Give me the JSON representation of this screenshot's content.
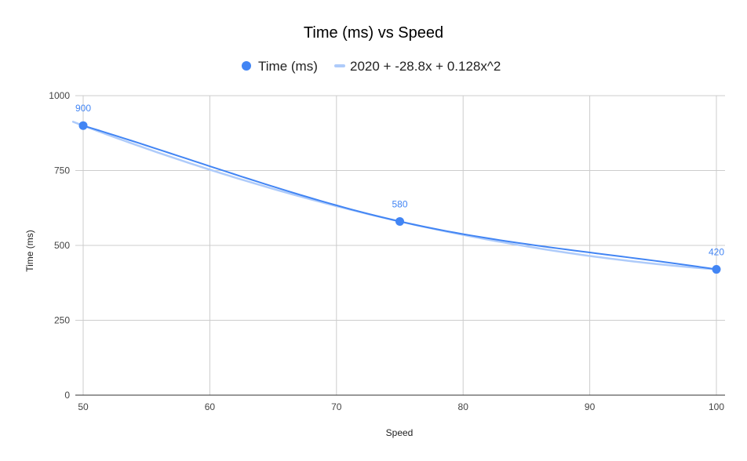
{
  "chart_data": {
    "type": "line",
    "title": "Time (ms) vs Speed",
    "xlabel": "Speed",
    "ylabel": "Time (ms)",
    "xlim": [
      50,
      100
    ],
    "ylim": [
      0,
      1000
    ],
    "x_ticks": [
      50,
      60,
      70,
      80,
      90,
      100
    ],
    "y_ticks": [
      0,
      250,
      500,
      750,
      1000
    ],
    "grid": true,
    "legend_position": "top",
    "series": [
      {
        "name": "Time (ms)",
        "x": [
          50,
          75,
          100
        ],
        "values": [
          900,
          580,
          420
        ],
        "data_labels": [
          "900",
          "580",
          "420"
        ],
        "color": "#4285f4",
        "markers": true
      }
    ],
    "trendline": {
      "name": "2020 + -28.8x + 0.128x^2",
      "type": "polynomial",
      "coefficients": [
        2020,
        -28.8,
        0.128
      ],
      "color": "#aecbfa"
    }
  }
}
